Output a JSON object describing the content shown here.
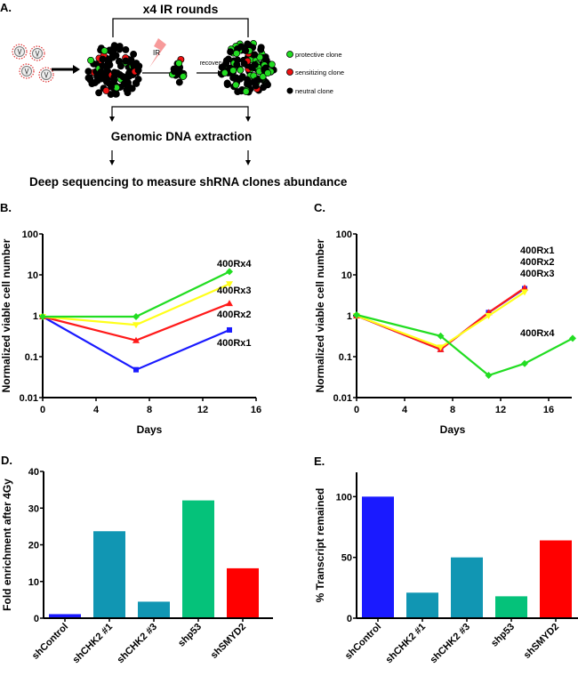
{
  "diagram": {
    "panel_label": "A.",
    "rounds_label": "x4 IR rounds",
    "ir_label": "IR",
    "recovery_label": "recovery",
    "extraction_label": "Genomic DNA extraction",
    "sequencing_label": "Deep sequencing to measure shRNA clones abundance",
    "legend": [
      {
        "label": "protective clone",
        "color": "#22dd22"
      },
      {
        "label": "sensitizing clone",
        "color": "#ee1111"
      },
      {
        "label": "neutral clone",
        "color": "#000000"
      }
    ]
  },
  "chart_data": [
    {
      "panel_label": "B.",
      "type": "line",
      "xlabel": "Days",
      "ylabel": "Normalized viable cell number",
      "xlim": [
        0,
        16
      ],
      "ylim": [
        0.01,
        100
      ],
      "yscale": "log",
      "xticks": [
        "0",
        "4",
        "8",
        "12",
        "16"
      ],
      "yticks": [
        "0.01",
        "0.1",
        "1",
        "10",
        "100"
      ],
      "series": [
        {
          "name": "400Rx1",
          "color": "#1a1aff",
          "marker": "square",
          "x": [
            0,
            7,
            14
          ],
          "y": [
            0.95,
            0.048,
            0.45
          ]
        },
        {
          "name": "400Rx2",
          "color": "#ff1a1a",
          "marker": "triangle",
          "x": [
            0,
            7,
            14
          ],
          "y": [
            0.95,
            0.25,
            2.0
          ]
        },
        {
          "name": "400Rx3",
          "color": "#ffff1a",
          "marker": "triangle-down",
          "x": [
            0,
            7,
            14
          ],
          "y": [
            0.95,
            0.6,
            6.0
          ]
        },
        {
          "name": "400Rx4",
          "color": "#22dd22",
          "marker": "diamond",
          "x": [
            0,
            7,
            14
          ],
          "y": [
            0.95,
            0.95,
            12.0
          ]
        }
      ]
    },
    {
      "panel_label": "C.",
      "type": "line",
      "xlabel": "Days",
      "ylabel": "Normalized viable cell number",
      "xlim": [
        0,
        18
      ],
      "ylim": [
        0.01,
        100
      ],
      "yscale": "log",
      "xticks": [
        "0",
        "4",
        "8",
        "12",
        "16"
      ],
      "yticks": [
        "0.01",
        "0.1",
        "1",
        "10",
        "100"
      ],
      "series_labels": [
        "400Rx1",
        "400Rx2",
        "400Rx3",
        "400Rx4"
      ],
      "series": [
        {
          "name": "400Rx1",
          "color": "#1a1aff",
          "marker": "square",
          "x": [
            0,
            7,
            11,
            14
          ],
          "y": [
            1.0,
            0.15,
            1.2,
            4.6
          ]
        },
        {
          "name": "400Rx2",
          "color": "#ff1a1a",
          "marker": "triangle",
          "x": [
            0,
            7,
            11,
            14
          ],
          "y": [
            1.0,
            0.15,
            1.2,
            4.8
          ]
        },
        {
          "name": "400Rx3",
          "color": "#ffff1a",
          "marker": "triangle-down",
          "x": [
            0,
            7,
            11,
            14
          ],
          "y": [
            1.0,
            0.17,
            1.0,
            3.8
          ]
        },
        {
          "name": "400Rx4",
          "color": "#22dd22",
          "marker": "diamond",
          "x": [
            0,
            7,
            11,
            14,
            18
          ],
          "y": [
            1.05,
            0.32,
            0.035,
            0.068,
            0.28
          ]
        }
      ]
    },
    {
      "panel_label": "D.",
      "type": "bar",
      "ylabel": "Fold enrichment after 4Gy",
      "ylim": [
        0,
        40
      ],
      "yticks": [
        "0",
        "10",
        "20",
        "30",
        "40"
      ],
      "categories": [
        "shControl",
        "shCHK2 #1",
        "shCHK2 #3",
        "shp53",
        "shSMYD2"
      ],
      "values": [
        1.1,
        23.7,
        4.5,
        32.1,
        13.6
      ],
      "colors": [
        "#1a1aff",
        "#1196b3",
        "#1196b3",
        "#05c27a",
        "#ff0000"
      ]
    },
    {
      "panel_label": "E.",
      "type": "bar",
      "ylabel": "% Transcript remained",
      "ylim": [
        0,
        120
      ],
      "yticks": [
        "0",
        "50",
        "100"
      ],
      "categories": [
        "shControl",
        "shCHK2 #1",
        "shCHK2 #3",
        "shp53",
        "shSMYD2"
      ],
      "values": [
        100,
        21,
        50,
        18,
        64
      ],
      "colors": [
        "#1a1aff",
        "#1196b3",
        "#1196b3",
        "#05c27a",
        "#ff0000"
      ]
    }
  ]
}
